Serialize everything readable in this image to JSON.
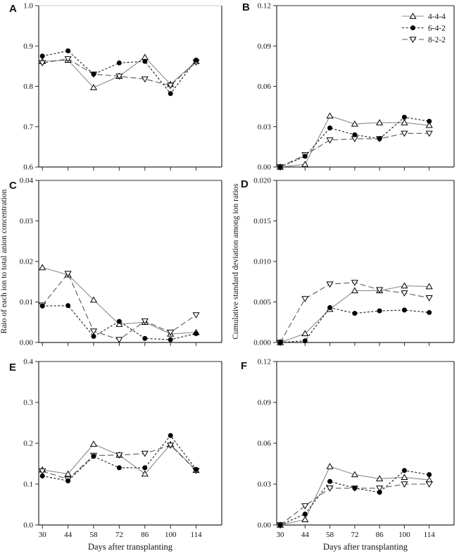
{
  "figure": {
    "background": "#ffffff",
    "shared_x_tick_labels": [
      "30",
      "44",
      "58",
      "72",
      "86",
      "100",
      "114"
    ],
    "x_axis_title": "Days after transplanting",
    "legend": {
      "position": "top-right-of-panel-B",
      "items": [
        {
          "label": "4-4-4",
          "marker": "triangle-up-open",
          "line_style": "solid"
        },
        {
          "label": "6-4-2",
          "marker": "circle-filled",
          "line_style": "dotted"
        },
        {
          "label": "8-2-2",
          "marker": "triangle-down-open",
          "line_style": "dashed"
        }
      ]
    },
    "colors": {
      "axis": "#2b2b2b",
      "faint_axis": "#c8c8c8",
      "marker_stroke": "#000000",
      "marker_open_fill": "#ffffff",
      "marker_filled_fill": "#000000",
      "line_444": "#8a8a8a",
      "line_642": "#1a1a1a",
      "line_822": "#5a5a5a"
    }
  },
  "chart_data": [
    {
      "panel": "A",
      "type": "line",
      "x": [
        30,
        44,
        58,
        72,
        86,
        100,
        114
      ],
      "xlim": [
        28,
        128
      ],
      "ylim": [
        0.6,
        1.0
      ],
      "yticks": [
        0.6,
        0.7,
        0.8,
        0.9,
        1.0
      ],
      "ytick_labels": [
        "0.6",
        "0.7",
        "0.8",
        "0.9",
        "1.0"
      ],
      "ylabel": "",
      "xlabel": "",
      "show_x_tick_labels": false,
      "legend": false,
      "grid": false,
      "faint_top_border": true,
      "series": [
        {
          "name": "4-4-4",
          "marker": "triangle-up-open",
          "line_style": "solid",
          "values": [
            0.862,
            0.865,
            0.797,
            0.825,
            0.872,
            0.805,
            0.862
          ]
        },
        {
          "name": "6-4-2",
          "marker": "circle-filled",
          "line_style": "dotted",
          "values": [
            0.875,
            0.888,
            0.83,
            0.858,
            0.862,
            0.782,
            0.865
          ]
        },
        {
          "name": "8-2-2",
          "marker": "triangle-down-open",
          "line_style": "dashed",
          "values": [
            0.858,
            0.868,
            0.83,
            0.825,
            0.818,
            0.802,
            0.86
          ]
        }
      ]
    },
    {
      "panel": "B",
      "type": "line",
      "x": [
        30,
        44,
        58,
        72,
        86,
        100,
        114
      ],
      "xlim": [
        28,
        128
      ],
      "ylim": [
        0.0,
        0.12
      ],
      "yticks": [
        0.0,
        0.03,
        0.06,
        0.09,
        0.12
      ],
      "ytick_labels": [
        "0.00",
        "0.03",
        "0.06",
        "0.09",
        "0.12"
      ],
      "ylabel": "",
      "xlabel": "",
      "show_x_tick_labels": false,
      "legend": true,
      "grid": false,
      "faint_top_border": false,
      "series": [
        {
          "name": "4-4-4",
          "marker": "triangle-up-open",
          "line_style": "solid",
          "values": [
            0.0,
            0.002,
            0.038,
            0.032,
            0.033,
            0.033,
            0.031
          ]
        },
        {
          "name": "6-4-2",
          "marker": "circle-filled",
          "line_style": "dotted",
          "values": [
            0.0,
            0.008,
            0.029,
            0.024,
            0.021,
            0.037,
            0.034
          ]
        },
        {
          "name": "8-2-2",
          "marker": "triangle-down-open",
          "line_style": "dashed",
          "values": [
            0.0,
            0.009,
            0.02,
            0.021,
            0.021,
            0.025,
            0.025
          ]
        }
      ]
    },
    {
      "panel": "C",
      "type": "line",
      "x": [
        30,
        44,
        58,
        72,
        86,
        100,
        114
      ],
      "xlim": [
        28,
        128
      ],
      "ylim": [
        0.0,
        0.04
      ],
      "yticks": [
        0.0,
        0.01,
        0.02,
        0.03,
        0.04
      ],
      "ytick_labels": [
        "0.00",
        "0.01",
        "0.02",
        "0.03",
        "0.04"
      ],
      "ylabel": "Raio of each ion to total anion concentration",
      "xlabel": "",
      "show_x_tick_labels": false,
      "legend": false,
      "grid": false,
      "faint_top_border": false,
      "series": [
        {
          "name": "4-4-4",
          "marker": "triangle-up-open",
          "line_style": "solid",
          "values": [
            0.0185,
            0.0167,
            0.0105,
            0.0045,
            0.005,
            0.0021,
            0.0025
          ]
        },
        {
          "name": "6-4-2",
          "marker": "circle-filled",
          "line_style": "dotted",
          "values": [
            0.009,
            0.0091,
            0.0015,
            0.0052,
            0.001,
            0.0007,
            0.0022
          ]
        },
        {
          "name": "8-2-2",
          "marker": "triangle-down-open",
          "line_style": "dashed",
          "values": [
            0.0092,
            0.017,
            0.0028,
            0.0007,
            0.0053,
            0.0025,
            0.0068
          ]
        }
      ]
    },
    {
      "panel": "D",
      "type": "line",
      "x": [
        30,
        44,
        58,
        72,
        86,
        100,
        114
      ],
      "xlim": [
        28,
        128
      ],
      "ylim": [
        0.0,
        0.02
      ],
      "yticks": [
        0.0,
        0.005,
        0.01,
        0.015,
        0.02
      ],
      "ytick_labels": [
        "0.000",
        "0.005",
        "0.010",
        "0.015",
        "0.020"
      ],
      "ylabel": "Cumulative standard deviation among ion ratios",
      "xlabel": "",
      "show_x_tick_labels": false,
      "legend": false,
      "grid": false,
      "faint_top_border": false,
      "series": [
        {
          "name": "4-4-4",
          "marker": "triangle-up-open",
          "line_style": "solid",
          "values": [
            0.0,
            0.0011,
            0.0041,
            0.0064,
            0.0064,
            0.007,
            0.0069
          ]
        },
        {
          "name": "6-4-2",
          "marker": "circle-filled",
          "line_style": "dotted",
          "values": [
            0.0,
            0.0002,
            0.0043,
            0.0036,
            0.0039,
            0.004,
            0.0037
          ]
        },
        {
          "name": "8-2-2",
          "marker": "triangle-down-open",
          "line_style": "dashed",
          "values": [
            0.0,
            0.0054,
            0.0072,
            0.0074,
            0.0065,
            0.0061,
            0.0055
          ]
        }
      ]
    },
    {
      "panel": "E",
      "type": "line",
      "x": [
        30,
        44,
        58,
        72,
        86,
        100,
        114
      ],
      "xlim": [
        28,
        128
      ],
      "ylim": [
        0.0,
        0.4
      ],
      "yticks": [
        0.0,
        0.1,
        0.2,
        0.3,
        0.4
      ],
      "ytick_labels": [
        "0.0",
        "0.1",
        "0.2",
        "0.3",
        "0.4"
      ],
      "ylabel": "",
      "xlabel": "Days after transplanting",
      "show_x_tick_labels": true,
      "legend": false,
      "grid": false,
      "faint_top_border": false,
      "series": [
        {
          "name": "4-4-4",
          "marker": "triangle-up-open",
          "line_style": "solid",
          "values": [
            0.135,
            0.125,
            0.198,
            0.171,
            0.125,
            0.197,
            0.134
          ]
        },
        {
          "name": "6-4-2",
          "marker": "circle-filled",
          "line_style": "dotted",
          "values": [
            0.12,
            0.108,
            0.168,
            0.14,
            0.14,
            0.219,
            0.136
          ]
        },
        {
          "name": "8-2-2",
          "marker": "triangle-down-open",
          "line_style": "dashed",
          "values": [
            0.132,
            0.112,
            0.17,
            0.171,
            0.175,
            0.195,
            0.133
          ]
        }
      ]
    },
    {
      "panel": "F",
      "type": "line",
      "x": [
        30,
        44,
        58,
        72,
        86,
        100,
        114
      ],
      "xlim": [
        28,
        128
      ],
      "ylim": [
        0.0,
        0.12
      ],
      "yticks": [
        0.0,
        0.03,
        0.06,
        0.09,
        0.12
      ],
      "ytick_labels": [
        "0.00",
        "0.03",
        "0.06",
        "0.09",
        "0.12"
      ],
      "ylabel": "",
      "xlabel": "Days after transplanting",
      "show_x_tick_labels": true,
      "legend": false,
      "grid": false,
      "faint_top_border": false,
      "series": [
        {
          "name": "4-4-4",
          "marker": "triangle-up-open",
          "line_style": "solid",
          "values": [
            0.0,
            0.004,
            0.043,
            0.037,
            0.034,
            0.035,
            0.033
          ]
        },
        {
          "name": "6-4-2",
          "marker": "circle-filled",
          "line_style": "dotted",
          "values": [
            0.0,
            0.008,
            0.032,
            0.027,
            0.024,
            0.04,
            0.037
          ]
        },
        {
          "name": "8-2-2",
          "marker": "triangle-down-open",
          "line_style": "dashed",
          "values": [
            0.0,
            0.014,
            0.027,
            0.027,
            0.027,
            0.03,
            0.03
          ]
        }
      ]
    }
  ]
}
